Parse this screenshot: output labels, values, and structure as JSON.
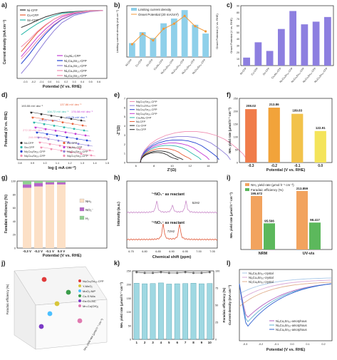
{
  "figure": {
    "panel_letters": [
      "a)",
      "b)",
      "c)",
      "d)",
      "e)",
      "f)",
      "g)",
      "h)",
      "i)",
      "j)",
      "k)",
      "l)"
    ]
  },
  "colors": {
    "ni": "#2b2b2b",
    "cu": "#e8613a",
    "sn": "#2ab7a9",
    "ni2cu8sn": "#c23bd4",
    "ni4cu6sn": "#1f3fd1",
    "ni6cu4sn": "#8e7fd8",
    "ni8cu2sn": "#f08db0",
    "bar_blue": "#8fd0ea",
    "line_orange": "#f29a3a",
    "bar_purple": "#8d7fe0",
    "nh3_orange": "#f2a35e",
    "fe_green": "#5cb85c",
    "nmr_pink": "#c98ac9",
    "nmr_red": "#e05a3a"
  },
  "chart_data": [
    {
      "id": "a",
      "type": "line",
      "xlabel": "Potential (V vs. RHE)",
      "ylabel": "Current density (mA cm⁻²)",
      "xlim": [
        -0.4,
        0.7
      ],
      "ylim": [
        -14,
        1
      ],
      "xticks": [
        "-0.3",
        "-0.2",
        "-0.1",
        "0.0",
        "0.1",
        "0.2",
        "0.3",
        "0.4",
        "0.5",
        "0.6"
      ],
      "legend_top": [
        "Ni-CFP",
        "Cu-CFP",
        "Sn-CFP"
      ],
      "legend_bottom": [
        "Cu₆Ni₄-CFP",
        "Ni₂Cu₈Sn₂₀-CFP",
        "Ni₄Cu₆Sn₂₀-CFP",
        "Ni₆Cu₄Sn₂₀-CFP",
        "Ni₈Cu₂Sn₂₀-CFP"
      ],
      "series": [
        {
          "name": "Ni-CFP",
          "x": [
            -0.35,
            -0.25,
            -0.15,
            -0.05,
            0.05,
            0.15,
            0.3,
            0.5,
            0.65
          ],
          "y": [
            -3.5,
            -2.8,
            -2.0,
            -1.3,
            -0.8,
            -0.4,
            -0.2,
            0,
            0
          ]
        },
        {
          "name": "Cu-CFP",
          "x": [
            -0.35,
            -0.25,
            -0.15,
            -0.05,
            0.05,
            0.15,
            0.3,
            0.5,
            0.65
          ],
          "y": [
            -8.5,
            -6.5,
            -4.5,
            -3.0,
            -1.8,
            -1.0,
            -0.4,
            -0.1,
            0
          ]
        },
        {
          "name": "Sn-CFP",
          "x": [
            -0.35,
            -0.25,
            -0.15,
            -0.05,
            0.05,
            0.15,
            0.3,
            0.5,
            0.65
          ],
          "y": [
            -5.0,
            -3.8,
            -2.7,
            -1.8,
            -1.1,
            -0.6,
            -0.3,
            0,
            0
          ]
        },
        {
          "name": "Cu₆Ni₄-CFP",
          "x": [
            -0.35,
            -0.25,
            -0.15,
            -0.05,
            0.05,
            0.15,
            0.3,
            0.5,
            0.65
          ],
          "y": [
            -9.5,
            -7.5,
            -5.5,
            -3.8,
            -2.4,
            -1.3,
            -0.5,
            -0.1,
            0
          ]
        },
        {
          "name": "Ni₂Cu₈Sn₂₀-CFP",
          "x": [
            -0.35,
            -0.25,
            -0.15,
            -0.05,
            0.05,
            0.15,
            0.3,
            0.5,
            0.65
          ],
          "y": [
            -11.0,
            -9.0,
            -6.8,
            -4.8,
            -3.1,
            -1.8,
            -0.7,
            -0.1,
            0
          ]
        },
        {
          "name": "Ni₄Cu₆Sn₂₀-CFP",
          "x": [
            -0.35,
            -0.25,
            -0.15,
            -0.05,
            0.05,
            0.15,
            0.3,
            0.5,
            0.65
          ],
          "y": [
            -13.0,
            -11.0,
            -8.6,
            -6.3,
            -4.2,
            -2.5,
            -1.0,
            -0.2,
            0
          ]
        },
        {
          "name": "Ni₆Cu₄Sn₂₀-CFP",
          "x": [
            -0.35,
            -0.25,
            -0.15,
            -0.05,
            0.05,
            0.15,
            0.3,
            0.5,
            0.65
          ],
          "y": [
            -10.0,
            -8.2,
            -6.2,
            -4.4,
            -2.9,
            -1.7,
            -0.6,
            -0.1,
            0
          ]
        },
        {
          "name": "Ni₈Cu₂Sn₂₀-CFP",
          "x": [
            -0.35,
            -0.25,
            -0.15,
            -0.05,
            0.05,
            0.15,
            0.3,
            0.5,
            0.65
          ],
          "y": [
            -7.5,
            -6.0,
            -4.3,
            -2.9,
            -1.8,
            -1.0,
            -0.4,
            0,
            0
          ]
        }
      ]
    },
    {
      "id": "b",
      "type": "bar",
      "ylabel": "Limiting current density (mA cm⁻²)",
      "y2label": "Onset Potential (V vs. RHE)",
      "legend": [
        "Limiting current density",
        "Onset Potential (20 mA/cm²)"
      ],
      "categories": [
        "Ni-CFP",
        "Cu-CFP",
        "Sn-CFP",
        "Cu₆Ni₄-CFP",
        "Ni₂Cu₈Sn₂₀-CFP",
        "Ni₄Cu₆Sn₂₀-CFP",
        "Ni₆Cu₄Sn₂₀-CFP",
        "Ni₈Cu₂Sn₂₀-CFP"
      ],
      "values": [
        38,
        68,
        52,
        92,
        105,
        128,
        88,
        64
      ],
      "ylim": [
        0,
        140
      ],
      "onset": [
        -0.3,
        -0.22,
        -0.27,
        -0.18,
        -0.14,
        -0.08,
        -0.16,
        -0.2
      ],
      "y2lim": [
        -0.4,
        0.0
      ]
    },
    {
      "id": "c",
      "type": "bar",
      "ylabel": "Onset Potential (V vs. RHE)",
      "categories": [
        "Ni-CFP",
        "Cu-CFP",
        "Sn-CFP",
        "Cu₆Ni₄-CFP",
        "Ni₂Cu₈Sn₂₀-CFP",
        "Ni₄Cu₆Sn₂₀-CFP",
        "Ni₆Cu₄Sn₂₀-CFP",
        "Ni₈Cu₂Sn₂₀-CFP"
      ],
      "values": [
        12,
        35,
        22,
        55,
        82,
        62,
        66,
        73
      ],
      "ylim": [
        0,
        90
      ],
      "yticks": [
        "0",
        "10",
        "20",
        "30",
        "40",
        "50",
        "60",
        "70",
        "80",
        "90"
      ]
    },
    {
      "id": "d",
      "type": "scatter",
      "xlabel": "log (j mA cm⁻²)",
      "ylabel": "Potential (V vs. RHE)",
      "xticks": [
        "0.8",
        "0.9",
        "1.0",
        "1.1",
        "1.2",
        "1.3",
        "1.4",
        "1.5"
      ],
      "slopes": [
        "193.55 mV dec⁻¹",
        "137.86 mV dec⁻¹",
        "104.72 mV dec⁻¹",
        "176.08 mV dec⁻¹",
        "178.76 mV dec⁻¹",
        "124.86 mV dec⁻¹",
        "272.33 mV dec⁻¹",
        "246.99 mV dec⁻¹"
      ],
      "legend": [
        "Ni-CFP",
        "Cu-CFP",
        "Sn-CFP",
        "Cu₆Ni₄-CFP",
        "Ni₂Cu₈Sn₂₀-CFP",
        "Ni₄Cu₆Sn₂₀-CFP",
        "Ni₆Cu₄Sn₂₀-CFP",
        "Ni₈Cu₂Sn₂₀-CFP"
      ]
    },
    {
      "id": "e",
      "type": "line",
      "xlabel": "Z′(Ω)",
      "ylabel": "-Z″(Ω)",
      "xlim": [
        5,
        15
      ],
      "ylim": [
        0,
        7
      ],
      "xticks": [
        "6",
        "8",
        "10",
        "12",
        "14"
      ],
      "yticks": [
        "0",
        "1",
        "2",
        "3",
        "4",
        "5",
        "6",
        "7"
      ],
      "legend": [
        "Ni₈Cu₂Sn₂₀-CFP",
        "Ni₆Cu₄Sn₂₀-CFP",
        "Ni₄Cu₆Sn₂₀-CFP",
        "Ni₂Cu₈Sn₂₀-CFP",
        "Cu₆Ni₄-CFP",
        "Ni-CFP",
        "Cu-CFP",
        "Sn-CFP"
      ]
    },
    {
      "id": "f",
      "type": "bar",
      "xlabel": "Potential (V vs. RHE)",
      "ylabel": "NH₃ yield rate (μmol h⁻¹ cm⁻²)",
      "categories": [
        "-0.3",
        "-0.2",
        "-0.1",
        "0.0"
      ],
      "values": [
        208.02,
        213.86,
        189.83,
        122.91
      ],
      "value_labels": [
        "208.02",
        "213.86",
        "189.83",
        "122.91"
      ],
      "ylim": [
        0,
        250
      ],
      "yticks": [
        "0",
        "50",
        "100",
        "150",
        "200",
        "250"
      ]
    },
    {
      "id": "g",
      "type": "bar",
      "xlabel": "Potential (V vs. RHE)",
      "ylabel": "Faradaic efficiency (%)",
      "categories": [
        "-0.3 V",
        "-0.2 V",
        "-0.1 V",
        "0.0 V"
      ],
      "series": [
        {
          "name": "NH₃",
          "values": [
            90,
            92,
            95,
            95
          ]
        },
        {
          "name": "NO₂⁻",
          "values": [
            5,
            5,
            3,
            3
          ]
        },
        {
          "name": "H₂",
          "values": [
            5,
            3,
            2,
            2
          ]
        }
      ],
      "ylim": [
        0,
        100
      ],
      "yticks": [
        "0",
        "20",
        "40",
        "60",
        "80",
        "100"
      ]
    },
    {
      "id": "h",
      "type": "line",
      "xlabel": "Chemical shift (ppm)",
      "ylabel": "Intensity (a.u.)",
      "xticks": [
        "6.75",
        "6.80",
        "6.85",
        "6.90",
        "6.95",
        "7.00",
        "7.05"
      ],
      "annotations": [
        "¹⁴NO₃⁻ as reactant",
        "52Hz",
        "¹⁵NO₃⁻ as reactant",
        "72Hz"
      ]
    },
    {
      "id": "i",
      "type": "bar",
      "ylabel": "NH₃ yield rate (μmol h⁻¹ cm⁻²)",
      "categories": [
        "NRM",
        "UV-vis"
      ],
      "legend": [
        "NH₃ yield rate (μmol h⁻¹ cm⁻²)",
        "Faradaic efficiency (%)"
      ],
      "series": [
        {
          "name": "NH₃ yield rate (μmol h⁻¹ cm⁻²)",
          "values": [
            195.672,
            213.859
          ]
        },
        {
          "name": "Faradaic efficiency (%)",
          "values": [
            95.596,
            98.417
          ]
        }
      ],
      "value_labels": [
        "195.672",
        "95.596",
        "213.859",
        "98.417"
      ],
      "ylim": [
        0,
        250
      ]
    },
    {
      "id": "j",
      "type": "scatter",
      "ylabel": "Faradaic efficiency (%)",
      "zlabel": "NH₃ yield rate (μmol h⁻¹ cm⁻²)",
      "legend": [
        "Ni₄Cu₆Sn₂₀-CFP",
        "Y-MnO₂",
        "MoO₂-NiP",
        "Cu-S NAs",
        "Co-Cu-NC",
        "Mn-Co(OH)₂"
      ]
    },
    {
      "id": "k",
      "type": "bar",
      "ylabel": "NH₃ yield rate (μmol h⁻¹ cm⁻²)",
      "y2label": "Faradaic efficiency (%)",
      "categories": [
        "1",
        "2",
        "3",
        "4",
        "5",
        "6",
        "7",
        "8",
        "9",
        "10"
      ],
      "values": [
        205,
        203,
        204,
        206,
        202,
        203,
        204,
        205,
        203,
        204
      ],
      "fe": [
        98,
        97,
        97,
        98,
        97,
        97,
        98,
        97,
        97,
        98
      ],
      "ylim": [
        0,
        250
      ],
      "y2lim": [
        0,
        100
      ],
      "yticks": [
        "0",
        "50",
        "100",
        "150",
        "200",
        "250"
      ],
      "y2ticks": [
        "0",
        "25",
        "50",
        "75",
        "100"
      ]
    },
    {
      "id": "l",
      "type": "line",
      "xlabel": "Potential (V vs. RHE)",
      "ylabel": "Current density (mA cm⁻²)",
      "xticks": [
        "-0.3",
        "-0.2",
        "-0.1",
        "0.0",
        "0.1",
        "0.2"
      ],
      "legend_crystal": [
        "Ni₈Cu₂Sn₂₀-crystal",
        "Ni₆Cu₄Sn₂₀-crystal",
        "Ni₂Cu₈Sn₂₀-crystal"
      ],
      "legend_amorphous": [
        "Ni₈Cu₂Sn₂₀-amorphous",
        "Ni₆Cu₄Sn₂₀-amorphous",
        "Ni₄Cu₆Sn₂₀-amorphous"
      ]
    }
  ]
}
